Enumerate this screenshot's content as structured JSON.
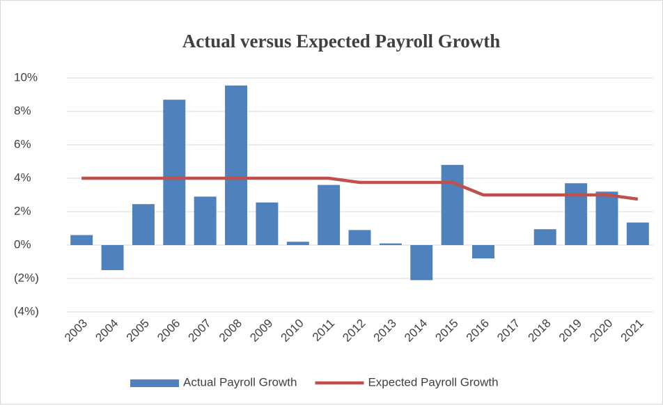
{
  "chart_data": {
    "type": "bar",
    "title": "Actual versus Expected Payroll Growth",
    "categories": [
      "2003",
      "2004",
      "2005",
      "2006",
      "2007",
      "2008",
      "2009",
      "2010",
      "2011",
      "2012",
      "2013",
      "2014",
      "2015",
      "2016",
      "2017",
      "2018",
      "2019",
      "2020",
      "2021"
    ],
    "series": [
      {
        "name": "Actual Payroll Growth",
        "mark": "bar",
        "color": "#4f81bd",
        "values": [
          0.6,
          -1.5,
          2.45,
          8.7,
          2.9,
          9.55,
          2.55,
          0.2,
          3.6,
          0.9,
          0.1,
          -2.1,
          4.8,
          -0.8,
          0,
          0.95,
          3.7,
          3.2,
          1.35
        ]
      },
      {
        "name": "Expected Payroll Growth",
        "mark": "line",
        "color": "#c0504d",
        "values": [
          4,
          4,
          4,
          4,
          4,
          4,
          4,
          4,
          4,
          3.75,
          3.75,
          3.75,
          3.75,
          3,
          3,
          3,
          3,
          3,
          2.75
        ]
      }
    ],
    "ylim": [
      -4,
      10
    ],
    "yticks": [
      {
        "value": -4,
        "label": "(4%)"
      },
      {
        "value": -2,
        "label": "(2%)"
      },
      {
        "value": 0,
        "label": "0%"
      },
      {
        "value": 2,
        "label": "2%"
      },
      {
        "value": 4,
        "label": "4%"
      },
      {
        "value": 6,
        "label": "6%"
      },
      {
        "value": 8,
        "label": "8%"
      },
      {
        "value": 10,
        "label": "10%"
      }
    ],
    "grid": true,
    "legend": "bottom"
  }
}
